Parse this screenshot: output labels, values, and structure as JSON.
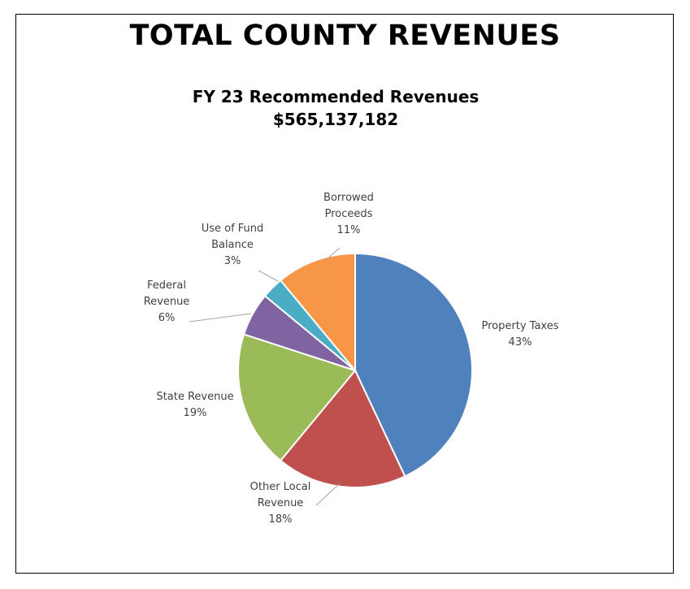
{
  "chart_data": {
    "type": "pie",
    "title": "TOTAL COUNTY REVENUES",
    "subtitle_lines": [
      "FY 23 Recommended Revenues",
      "$565,137,182"
    ],
    "slices": [
      {
        "label_lines": [
          "Property Taxes"
        ],
        "value": 43,
        "pct_text": "43%",
        "color": "#4F81BD"
      },
      {
        "label_lines": [
          "Other Local",
          "Revenue"
        ],
        "value": 18,
        "pct_text": "18%",
        "color": "#C0504D"
      },
      {
        "label_lines": [
          "State Revenue"
        ],
        "value": 19,
        "pct_text": "19%",
        "color": "#9BBB59"
      },
      {
        "label_lines": [
          "Federal",
          "Revenue"
        ],
        "value": 6,
        "pct_text": "6%",
        "color": "#8064A2"
      },
      {
        "label_lines": [
          "Use of Fund",
          "Balance"
        ],
        "value": 3,
        "pct_text": "3%",
        "color": "#4BACC6"
      },
      {
        "label_lines": [
          "Borrowed",
          "Proceeds"
        ],
        "value": 11,
        "pct_text": "11%",
        "color": "#F79646"
      }
    ]
  }
}
